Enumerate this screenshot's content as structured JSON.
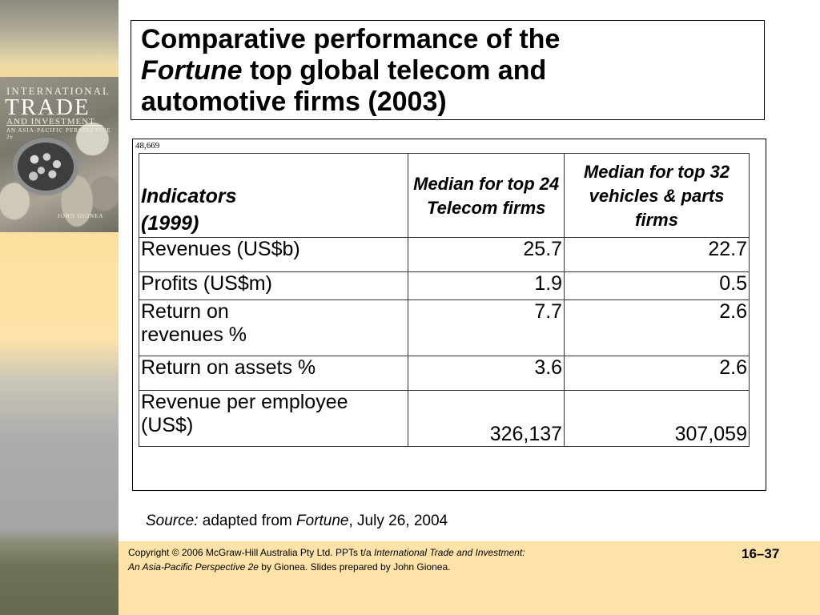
{
  "slide": {
    "title_line1": "Comparative performance of the",
    "title_italic": "Fortune",
    "title_line2_rest": " top global telecom and",
    "title_line3": "automotive firms (2003)",
    "corner_note": "48,669"
  },
  "book_cover": {
    "line1": "INTERNATIONAL",
    "line2": "TRADE",
    "line3": "AND INVESTMENT",
    "line4": "AN ASIA-PACIFIC PERSPECTIVE 2e",
    "author": "JOHN GIONEA"
  },
  "table": {
    "headers": {
      "indicator_line1": "Indicators",
      "indicator_line2": "(1999)",
      "col2": "Median for top 24 Telecom firms",
      "col3": "Median for top 32 vehicles & parts firms"
    },
    "rows": [
      {
        "label_line1": "Revenues (US$b)",
        "label_line2": "",
        "telecom": "25.7",
        "auto": "22.7"
      },
      {
        "label_line1": "Profits (US$m)",
        "label_line2": "",
        "telecom": "1.9",
        "auto": "0.5"
      },
      {
        "label_line1": "Return on",
        "label_line2": "revenues %",
        "telecom": "7.7",
        "auto": "2.6"
      },
      {
        "label_line1": "Return on  assets %",
        "label_line2": "",
        "telecom": "3.6",
        "auto": "2.6"
      },
      {
        "label_line1": "Revenue  per employee",
        "label_line2": "(US$)",
        "telecom": "326,137",
        "auto": "307,059"
      }
    ]
  },
  "source": {
    "label": "Source:",
    "text_before": " adapted from ",
    "publication": "Fortune",
    "text_after": ", July 26, 2004"
  },
  "footer": {
    "copyright_prefix": "Copyright ",
    "copyright_symbol": "©",
    "copyright_line1": " 2006 McGraw-Hill Australia Pty Ltd. PPTs t/a ",
    "book_title_line1": "International Trade and Investment:",
    "book_title_line2": "An Asia-Pacific Perspective 2e",
    "copyright_line2": " by Gionea. Slides prepared by John Gionea.",
    "page_number": "16–37"
  }
}
